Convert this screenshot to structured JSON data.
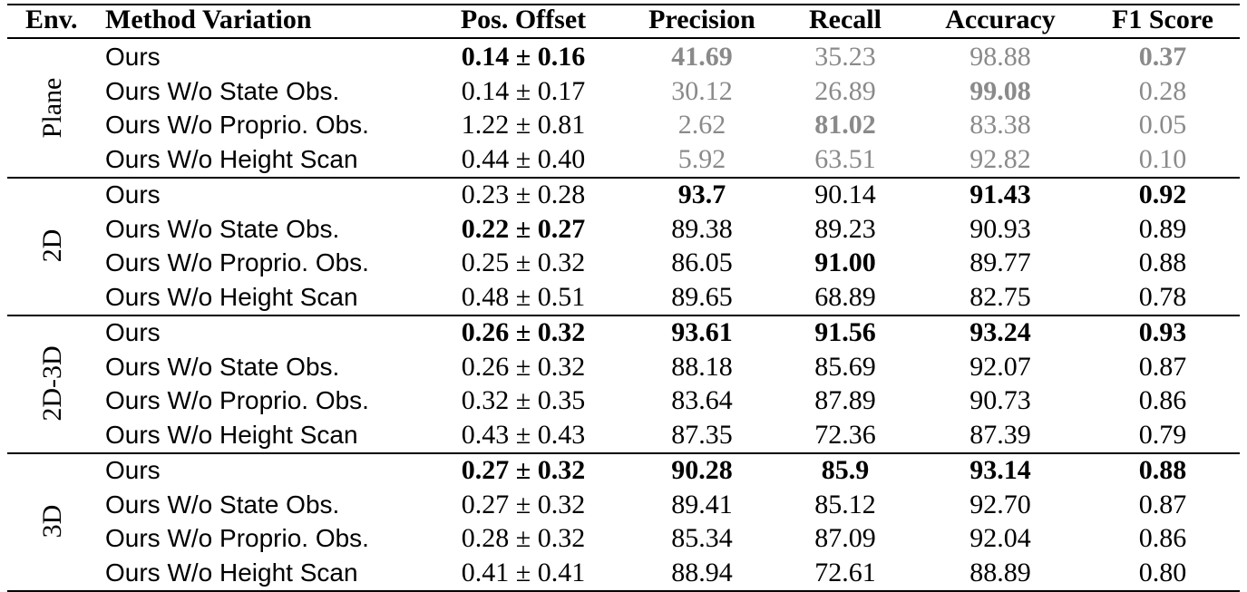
{
  "headers": {
    "env": "Env.",
    "method": "Method Variation",
    "pos": "Pos. Offset",
    "precision": "Precision",
    "recall": "Recall",
    "accuracy": "Accuracy",
    "f1": "F1 Score"
  },
  "groups": [
    {
      "env": "Plane",
      "rows": [
        {
          "method": "Ours",
          "pos": "0.14 ± 0.16",
          "precision": "41.69",
          "recall": "35.23",
          "accuracy": "98.88",
          "f1": "0.37"
        },
        {
          "method": "Ours W/o State Obs.",
          "pos": "0.14 ± 0.17",
          "precision": "30.12",
          "recall": "26.89",
          "accuracy": "99.08",
          "f1": "0.28"
        },
        {
          "method": "Ours W/o Proprio. Obs.",
          "pos": "1.22 ± 0.81",
          "precision": "2.62",
          "recall": "81.02",
          "accuracy": "83.38",
          "f1": "0.05"
        },
        {
          "method": "Ours W/o Height Scan",
          "pos": "0.44 ± 0.40",
          "precision": "5.92",
          "recall": "63.51",
          "accuracy": "92.82",
          "f1": "0.10"
        }
      ]
    },
    {
      "env": "2D",
      "rows": [
        {
          "method": "Ours",
          "pos": "0.23 ± 0.28",
          "precision": "93.7",
          "recall": "90.14",
          "accuracy": "91.43",
          "f1": "0.92"
        },
        {
          "method": "Ours W/o State Obs.",
          "pos": "0.22 ± 0.27",
          "precision": "89.38",
          "recall": "89.23",
          "accuracy": "90.93",
          "f1": "0.89"
        },
        {
          "method": "Ours W/o Proprio. Obs.",
          "pos": "0.25 ± 0.32",
          "precision": "86.05",
          "recall": "91.00",
          "accuracy": "89.77",
          "f1": "0.88"
        },
        {
          "method": "Ours W/o Height Scan",
          "pos": "0.48 ± 0.51",
          "precision": "89.65",
          "recall": "68.89",
          "accuracy": "82.75",
          "f1": "0.78"
        }
      ]
    },
    {
      "env": "2D-3D",
      "rows": [
        {
          "method": "Ours",
          "pos": "0.26 ± 0.32",
          "precision": "93.61",
          "recall": "91.56",
          "accuracy": "93.24",
          "f1": "0.93"
        },
        {
          "method": "Ours W/o State Obs.",
          "pos": "0.26 ± 0.32",
          "precision": "88.18",
          "recall": "85.69",
          "accuracy": "92.07",
          "f1": "0.87"
        },
        {
          "method": "Ours W/o Proprio. Obs.",
          "pos": "0.32 ± 0.35",
          "precision": "83.64",
          "recall": "87.89",
          "accuracy": "90.73",
          "f1": "0.86"
        },
        {
          "method": "Ours W/o Height Scan",
          "pos": "0.43 ± 0.43",
          "precision": "87.35",
          "recall": "72.36",
          "accuracy": "87.39",
          "f1": "0.79"
        }
      ]
    },
    {
      "env": "3D",
      "rows": [
        {
          "method": "Ours",
          "pos": "0.27 ± 0.32",
          "precision": "90.28",
          "recall": "85.9",
          "accuracy": "93.14",
          "f1": "0.88"
        },
        {
          "method": "Ours W/o State Obs.",
          "pos": "0.27 ± 0.32",
          "precision": "89.41",
          "recall": "85.12",
          "accuracy": "92.70",
          "f1": "0.87"
        },
        {
          "method": "Ours W/o Proprio. Obs.",
          "pos": "0.28 ± 0.32",
          "precision": "85.34",
          "recall": "87.09",
          "accuracy": "92.04",
          "f1": "0.86"
        },
        {
          "method": "Ours W/o Height Scan",
          "pos": "0.41 ± 0.41",
          "precision": "88.94",
          "recall": "72.61",
          "accuracy": "88.89",
          "f1": "0.80"
        }
      ]
    }
  ],
  "styles": {
    "bold": [
      "0.0.pos",
      "0.0.precision",
      "0.0.f1",
      "0.1.accuracy",
      "0.2.recall",
      "1.0.precision",
      "1.0.accuracy",
      "1.0.f1",
      "1.1.pos",
      "1.2.recall",
      "2.0.pos",
      "2.0.precision",
      "2.0.recall",
      "2.0.accuracy",
      "2.0.f1",
      "3.0.pos",
      "3.0.precision",
      "3.0.recall",
      "3.0.accuracy",
      "3.0.f1"
    ],
    "grey_columns_in_group_0": [
      "precision",
      "recall",
      "accuracy",
      "f1"
    ],
    "grey_color": "#8a8a8a"
  }
}
